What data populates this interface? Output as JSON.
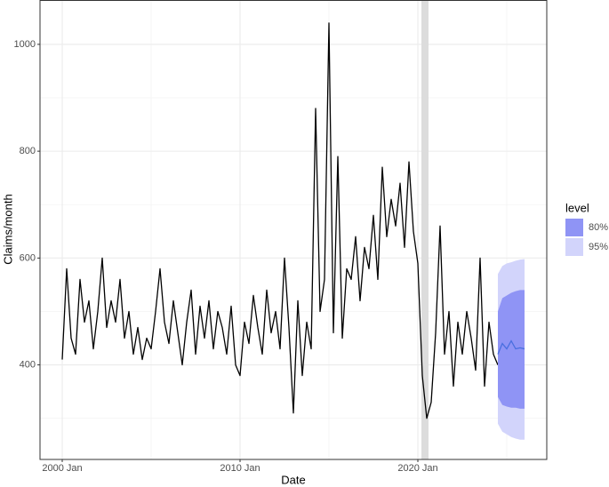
{
  "chart_data": {
    "type": "line",
    "xlabel": "Date",
    "ylabel": "Claims/month",
    "xlim": [
      1998.75,
      2027.25
    ],
    "ylim": [
      223,
      1083
    ],
    "xticks": [
      {
        "value": 2000,
        "label": "2000 Jan"
      },
      {
        "value": 2010,
        "label": "2010 Jan"
      },
      {
        "value": 2020,
        "label": "2020 Jan"
      }
    ],
    "yticks": [
      400,
      600,
      800,
      1000
    ],
    "x_minor_ticks": [
      2005,
      2015,
      2025
    ],
    "y_minor_ticks": [
      300,
      500,
      700,
      900
    ],
    "grid": true,
    "color": "#000000",
    "shaded_region": {
      "x": [
        2020.2,
        2020.6
      ],
      "color": "#dcdcdc"
    },
    "x": [
      2000,
      2000.25,
      2000.5,
      2000.75,
      2001,
      2001.25,
      2001.5,
      2001.75,
      2002,
      2002.25,
      2002.5,
      2002.75,
      2003,
      2003.25,
      2003.5,
      2003.75,
      2004,
      2004.25,
      2004.5,
      2004.75,
      2005,
      2005.25,
      2005.5,
      2005.75,
      2006,
      2006.25,
      2006.5,
      2006.75,
      2007,
      2007.25,
      2007.5,
      2007.75,
      2008,
      2008.25,
      2008.5,
      2008.75,
      2009,
      2009.25,
      2009.5,
      2009.75,
      2010,
      2010.25,
      2010.5,
      2010.75,
      2011,
      2011.25,
      2011.5,
      2011.75,
      2012,
      2012.25,
      2012.5,
      2012.75,
      2013,
      2013.25,
      2013.5,
      2013.75,
      2014,
      2014.25,
      2014.5,
      2014.75,
      2015,
      2015.25,
      2015.5,
      2015.75,
      2016,
      2016.25,
      2016.5,
      2016.75,
      2017,
      2017.25,
      2017.5,
      2017.75,
      2018,
      2018.25,
      2018.5,
      2018.75,
      2019,
      2019.25,
      2019.5,
      2019.75,
      2020,
      2020.25,
      2020.5,
      2020.75,
      2021,
      2021.25,
      2021.5,
      2021.75,
      2022,
      2022.25,
      2022.5,
      2022.75,
      2023,
      2023.25,
      2023.5,
      2023.75,
      2024,
      2024.25,
      2024.5
    ],
    "values": [
      410,
      580,
      450,
      420,
      560,
      480,
      520,
      430,
      500,
      600,
      470,
      520,
      480,
      560,
      450,
      500,
      420,
      470,
      410,
      450,
      430,
      500,
      580,
      480,
      440,
      520,
      460,
      400,
      480,
      540,
      420,
      510,
      450,
      520,
      430,
      500,
      470,
      420,
      510,
      400,
      380,
      480,
      440,
      530,
      470,
      420,
      540,
      460,
      500,
      430,
      600,
      470,
      310,
      520,
      380,
      480,
      430,
      880,
      500,
      560,
      1040,
      460,
      790,
      450,
      580,
      560,
      640,
      520,
      620,
      580,
      680,
      560,
      770,
      640,
      710,
      660,
      740,
      620,
      780,
      650,
      590,
      380,
      300,
      330,
      460,
      660,
      420,
      500,
      360,
      480,
      420,
      500,
      450,
      390,
      600,
      360,
      480,
      420,
      400
    ],
    "forecast": {
      "x": [
        2024.5,
        2024.75,
        2025,
        2025.25,
        2025.5,
        2025.75,
        2026
      ],
      "mean": [
        420,
        440,
        430,
        445,
        430,
        432,
        430
      ],
      "lo80": [
        340,
        325,
        322,
        320,
        320,
        318,
        318
      ],
      "hi80": [
        500,
        525,
        530,
        535,
        538,
        540,
        540
      ],
      "lo95": [
        290,
        275,
        270,
        265,
        262,
        260,
        260
      ],
      "hi95": [
        570,
        585,
        590,
        592,
        595,
        597,
        598
      ],
      "mean_color": "#4a6fe0"
    },
    "legend": {
      "title": "level",
      "entries": [
        {
          "label": "80%",
          "color": "#8f94f5"
        },
        {
          "label": "95%",
          "color": "#d2d4fb"
        }
      ]
    }
  }
}
